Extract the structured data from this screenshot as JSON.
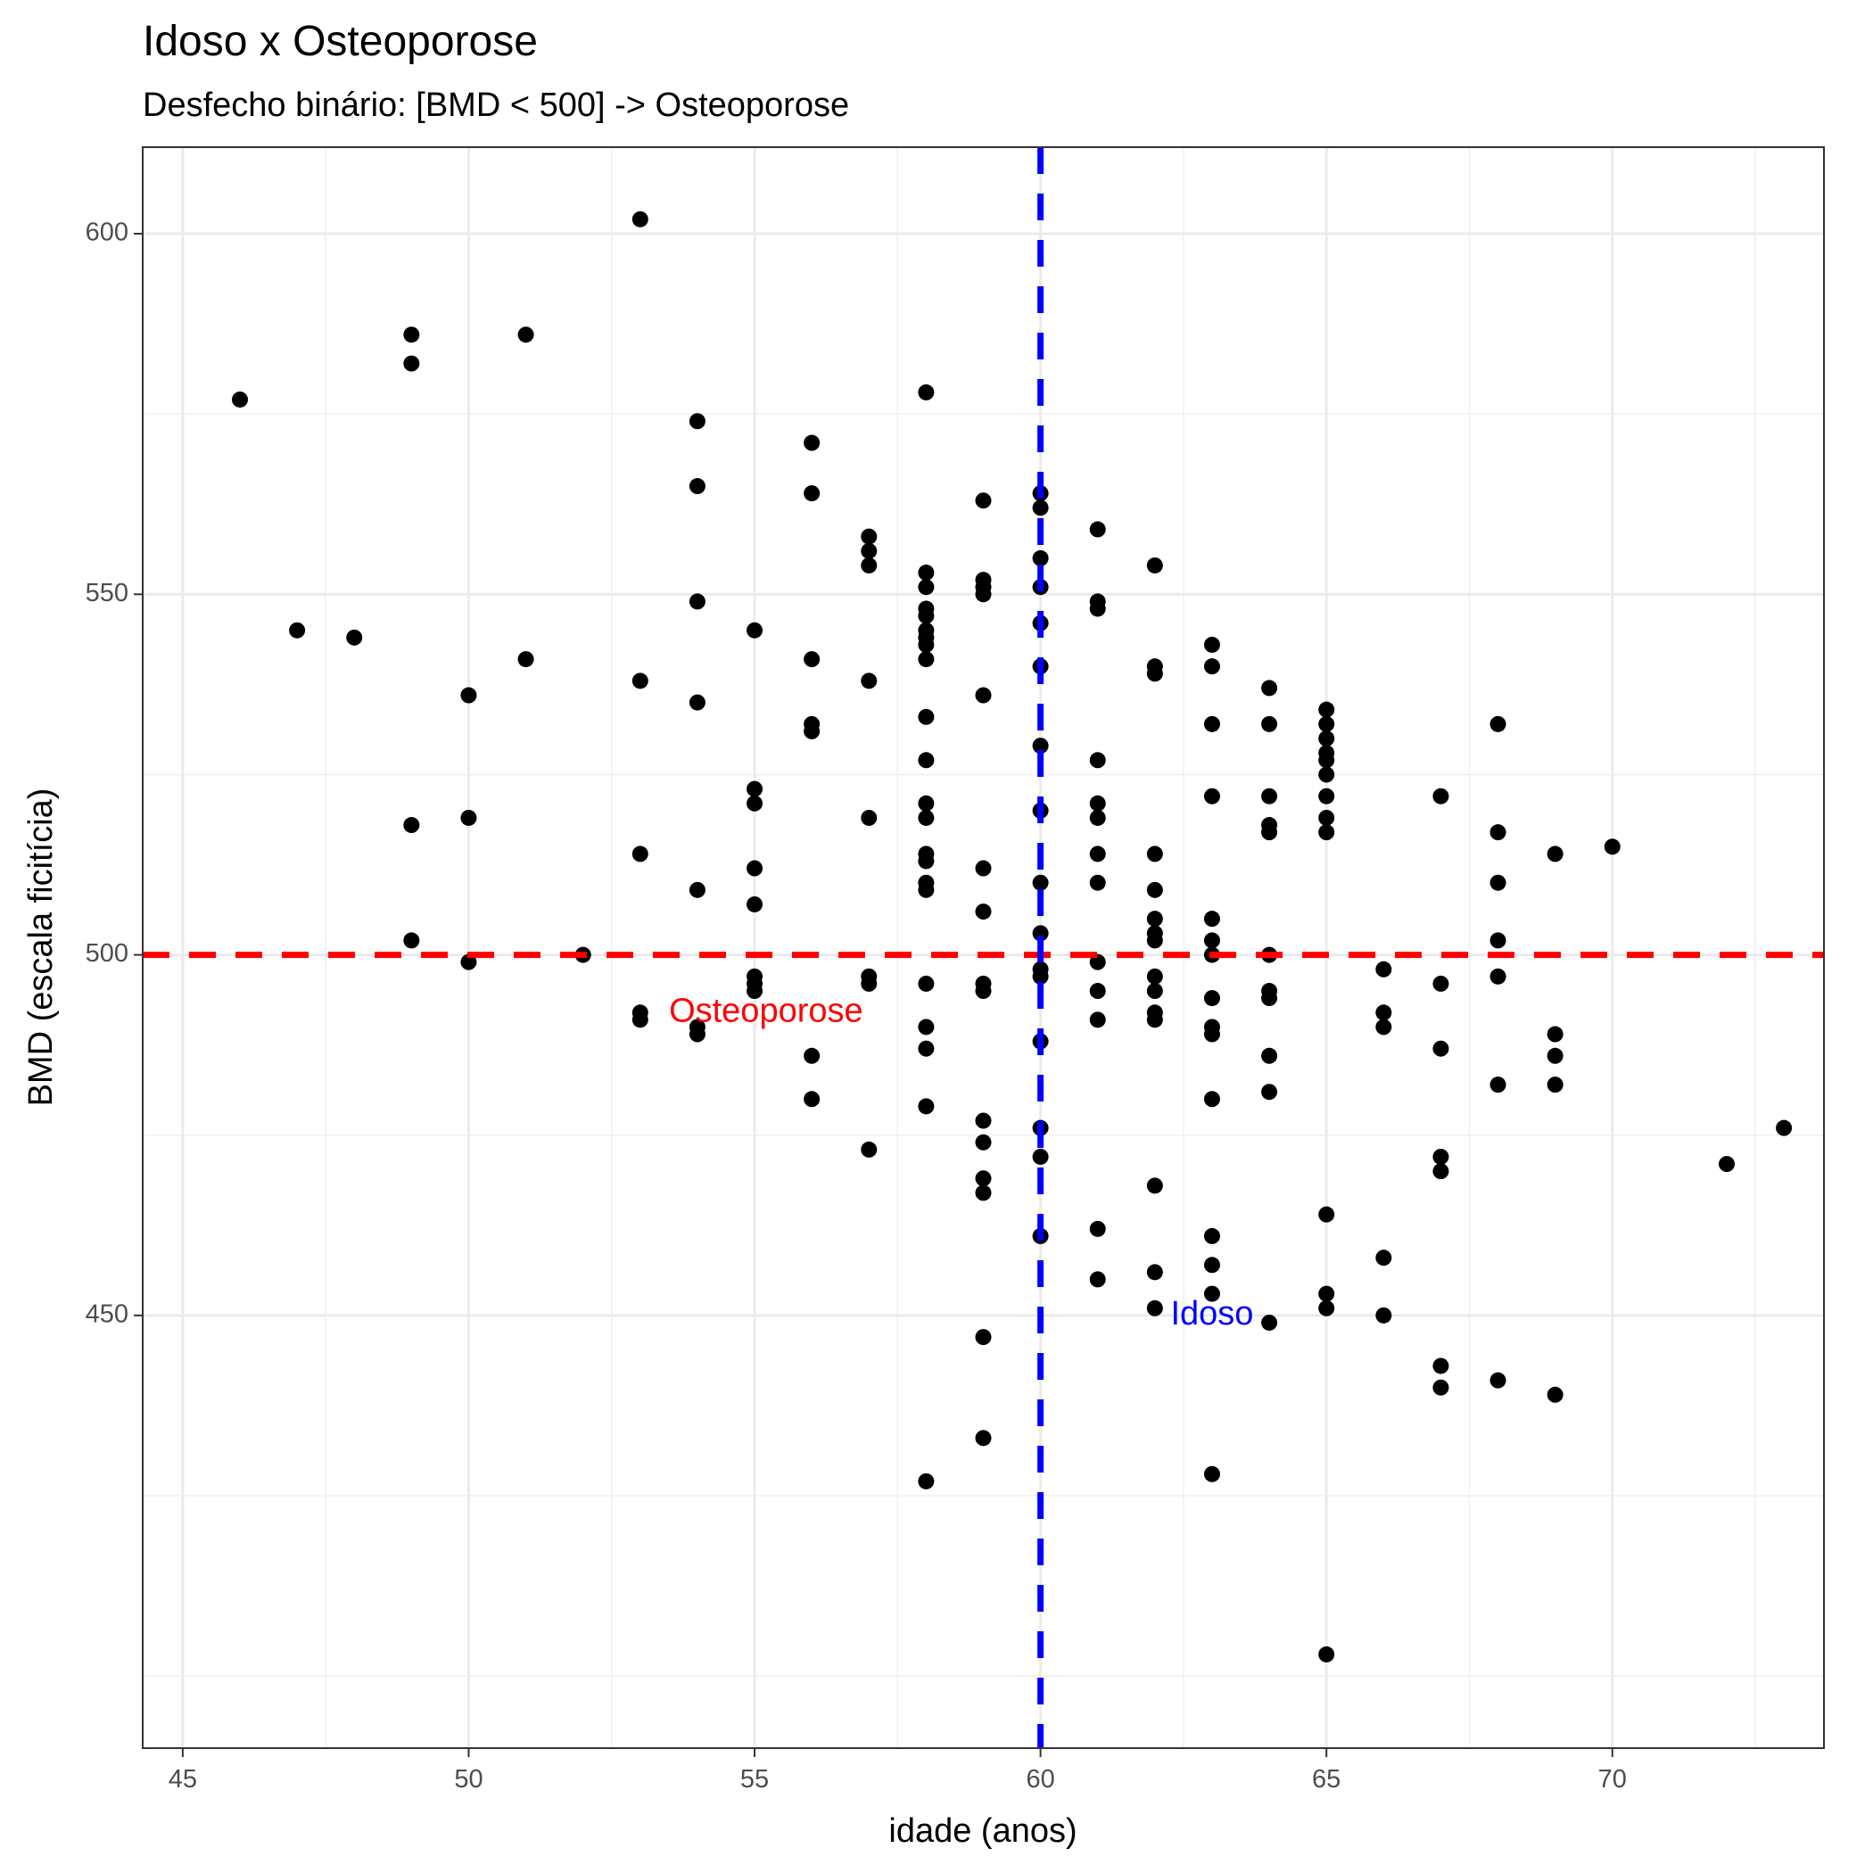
{
  "chart_data": {
    "type": "scatter",
    "title": "Idoso x Osteoporose",
    "subtitle": "Desfecho binário: [BMD < 500] -> Osteoporose",
    "xlabel": "idade (anos)",
    "ylabel": "BMD (escala ficitícia)",
    "xlim": [
      44.3,
      73.7
    ],
    "ylim": [
      390,
      612
    ],
    "x_ticks": [
      "45",
      "50",
      "55",
      "60",
      "65",
      "70"
    ],
    "y_ticks": [
      "450",
      "500",
      "550",
      "600"
    ],
    "grid": true,
    "point_color": "#000000",
    "reference_lines": [
      {
        "orientation": "horizontal",
        "value": 500,
        "color": "#ff0000",
        "style": "dashed"
      },
      {
        "orientation": "vertical",
        "value": 60,
        "color": "#0000ff",
        "style": "dashed"
      }
    ],
    "annotations": [
      {
        "text": "Osteoporose",
        "x": 55.2,
        "y": 492,
        "color": "#ff0000"
      },
      {
        "text": "Idoso",
        "x": 63,
        "y": 450,
        "color": "#0000ff"
      }
    ],
    "points": [
      [
        46,
        577
      ],
      [
        47,
        545
      ],
      [
        48,
        544
      ],
      [
        49,
        586
      ],
      [
        49,
        582
      ],
      [
        49,
        518
      ],
      [
        49,
        502
      ],
      [
        50,
        536
      ],
      [
        50,
        519
      ],
      [
        50,
        499
      ],
      [
        51,
        586
      ],
      [
        51,
        541
      ],
      [
        52,
        500
      ],
      [
        53,
        602
      ],
      [
        53,
        538
      ],
      [
        53,
        514
      ],
      [
        53,
        492
      ],
      [
        53,
        491
      ],
      [
        54,
        574
      ],
      [
        54,
        565
      ],
      [
        54,
        549
      ],
      [
        54,
        535
      ],
      [
        54,
        509
      ],
      [
        54,
        490
      ],
      [
        54,
        489
      ],
      [
        55,
        545
      ],
      [
        55,
        523
      ],
      [
        55,
        521
      ],
      [
        55,
        512
      ],
      [
        55,
        507
      ],
      [
        55,
        497
      ],
      [
        55,
        496
      ],
      [
        55,
        495
      ],
      [
        56,
        571
      ],
      [
        56,
        564
      ],
      [
        56,
        541
      ],
      [
        56,
        532
      ],
      [
        56,
        531
      ],
      [
        56,
        486
      ],
      [
        56,
        480
      ],
      [
        57,
        558
      ],
      [
        57,
        556
      ],
      [
        57,
        554
      ],
      [
        57,
        538
      ],
      [
        57,
        519
      ],
      [
        57,
        497
      ],
      [
        57,
        496
      ],
      [
        57,
        473
      ],
      [
        58,
        578
      ],
      [
        58,
        553
      ],
      [
        58,
        551
      ],
      [
        58,
        548
      ],
      [
        58,
        547
      ],
      [
        58,
        545
      ],
      [
        58,
        544
      ],
      [
        58,
        543
      ],
      [
        58,
        541
      ],
      [
        58,
        533
      ],
      [
        58,
        527
      ],
      [
        58,
        521
      ],
      [
        58,
        519
      ],
      [
        58,
        514
      ],
      [
        58,
        513
      ],
      [
        58,
        510
      ],
      [
        58,
        509
      ],
      [
        58,
        496
      ],
      [
        58,
        490
      ],
      [
        58,
        487
      ],
      [
        58,
        479
      ],
      [
        58,
        427
      ],
      [
        59,
        563
      ],
      [
        59,
        552
      ],
      [
        59,
        551
      ],
      [
        59,
        550
      ],
      [
        59,
        536
      ],
      [
        59,
        512
      ],
      [
        59,
        506
      ],
      [
        59,
        496
      ],
      [
        59,
        495
      ],
      [
        59,
        477
      ],
      [
        59,
        474
      ],
      [
        59,
        469
      ],
      [
        59,
        467
      ],
      [
        59,
        447
      ],
      [
        59,
        433
      ],
      [
        60,
        564
      ],
      [
        60,
        562
      ],
      [
        60,
        555
      ],
      [
        60,
        551
      ],
      [
        60,
        546
      ],
      [
        60,
        540
      ],
      [
        60,
        529
      ],
      [
        60,
        520
      ],
      [
        60,
        510
      ],
      [
        60,
        503
      ],
      [
        60,
        498
      ],
      [
        60,
        497
      ],
      [
        60,
        488
      ],
      [
        60,
        476
      ],
      [
        60,
        472
      ],
      [
        60,
        461
      ],
      [
        61,
        559
      ],
      [
        61,
        549
      ],
      [
        61,
        548
      ],
      [
        61,
        527
      ],
      [
        61,
        521
      ],
      [
        61,
        519
      ],
      [
        61,
        514
      ],
      [
        61,
        510
      ],
      [
        61,
        499
      ],
      [
        61,
        495
      ],
      [
        61,
        491
      ],
      [
        61,
        462
      ],
      [
        61,
        455
      ],
      [
        62,
        554
      ],
      [
        62,
        540
      ],
      [
        62,
        539
      ],
      [
        62,
        514
      ],
      [
        62,
        509
      ],
      [
        62,
        505
      ],
      [
        62,
        503
      ],
      [
        62,
        502
      ],
      [
        62,
        497
      ],
      [
        62,
        495
      ],
      [
        62,
        492
      ],
      [
        62,
        491
      ],
      [
        62,
        468
      ],
      [
        62,
        456
      ],
      [
        62,
        451
      ],
      [
        63,
        543
      ],
      [
        63,
        540
      ],
      [
        63,
        532
      ],
      [
        63,
        522
      ],
      [
        63,
        505
      ],
      [
        63,
        502
      ],
      [
        63,
        500
      ],
      [
        63,
        494
      ],
      [
        63,
        490
      ],
      [
        63,
        489
      ],
      [
        63,
        480
      ],
      [
        63,
        461
      ],
      [
        63,
        457
      ],
      [
        63,
        453
      ],
      [
        63,
        428
      ],
      [
        64,
        537
      ],
      [
        64,
        532
      ],
      [
        64,
        522
      ],
      [
        64,
        518
      ],
      [
        64,
        517
      ],
      [
        64,
        500
      ],
      [
        64,
        495
      ],
      [
        64,
        494
      ],
      [
        64,
        486
      ],
      [
        64,
        481
      ],
      [
        64,
        449
      ],
      [
        65,
        534
      ],
      [
        65,
        532
      ],
      [
        65,
        530
      ],
      [
        65,
        528
      ],
      [
        65,
        527
      ],
      [
        65,
        525
      ],
      [
        65,
        522
      ],
      [
        65,
        519
      ],
      [
        65,
        517
      ],
      [
        65,
        464
      ],
      [
        65,
        453
      ],
      [
        65,
        451
      ],
      [
        65,
        403
      ],
      [
        66,
        498
      ],
      [
        66,
        492
      ],
      [
        66,
        490
      ],
      [
        66,
        458
      ],
      [
        66,
        450
      ],
      [
        67,
        522
      ],
      [
        67,
        496
      ],
      [
        67,
        487
      ],
      [
        67,
        472
      ],
      [
        67,
        470
      ],
      [
        67,
        443
      ],
      [
        67,
        440
      ],
      [
        68,
        532
      ],
      [
        68,
        517
      ],
      [
        68,
        510
      ],
      [
        68,
        502
      ],
      [
        68,
        497
      ],
      [
        68,
        482
      ],
      [
        68,
        441
      ],
      [
        69,
        514
      ],
      [
        69,
        489
      ],
      [
        69,
        486
      ],
      [
        69,
        482
      ],
      [
        69,
        439
      ],
      [
        70,
        515
      ],
      [
        72,
        471
      ],
      [
        73,
        476
      ]
    ]
  }
}
